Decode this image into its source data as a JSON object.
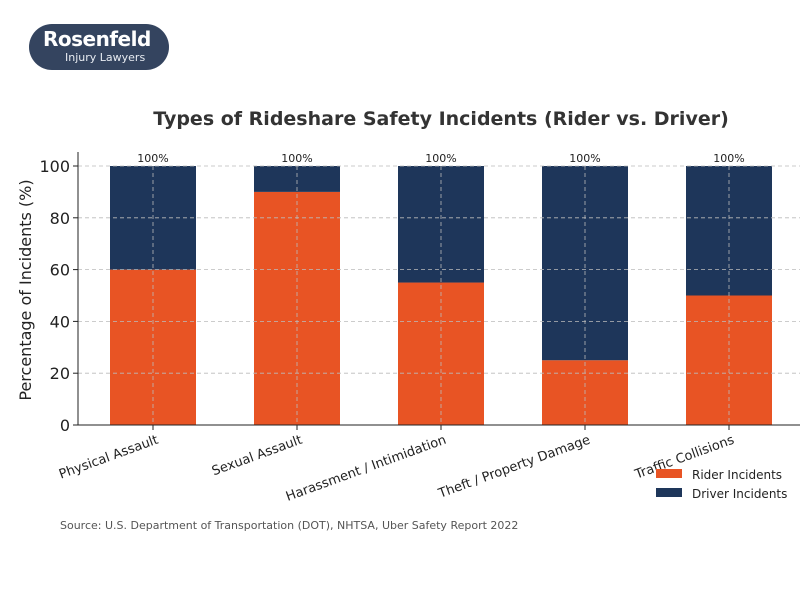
{
  "logo": {
    "line1": "Rosenfeld",
    "line2": "Injury Lawyers"
  },
  "chart_data": {
    "type": "bar",
    "stacked": true,
    "title": "Types of Rideshare Safety Incidents (Rider vs. Driver)",
    "ylabel": "Percentage of Incidents (%)",
    "xlabel": "",
    "ylim": [
      0,
      100
    ],
    "yticks": [
      0,
      20,
      40,
      60,
      80,
      100
    ],
    "grid": true,
    "categories": [
      "Physical Assault",
      "Sexual Assault",
      "Harassment / Intimidation",
      "Theft / Property Damage",
      "Traffic Collisions"
    ],
    "series": [
      {
        "name": "Rider Incidents",
        "values": [
          60,
          90,
          55,
          25,
          50
        ],
        "color": "#e85424"
      },
      {
        "name": "Driver Incidents",
        "values": [
          40,
          10,
          45,
          75,
          50
        ],
        "color": "#1e365a"
      }
    ],
    "total_labels": [
      "100%",
      "100%",
      "100%",
      "100%",
      "100%"
    ],
    "legend_position": "bottom-right",
    "source": "Source: U.S. Department of Transportation (DOT), NHTSA, Uber Safety Report 2022"
  }
}
